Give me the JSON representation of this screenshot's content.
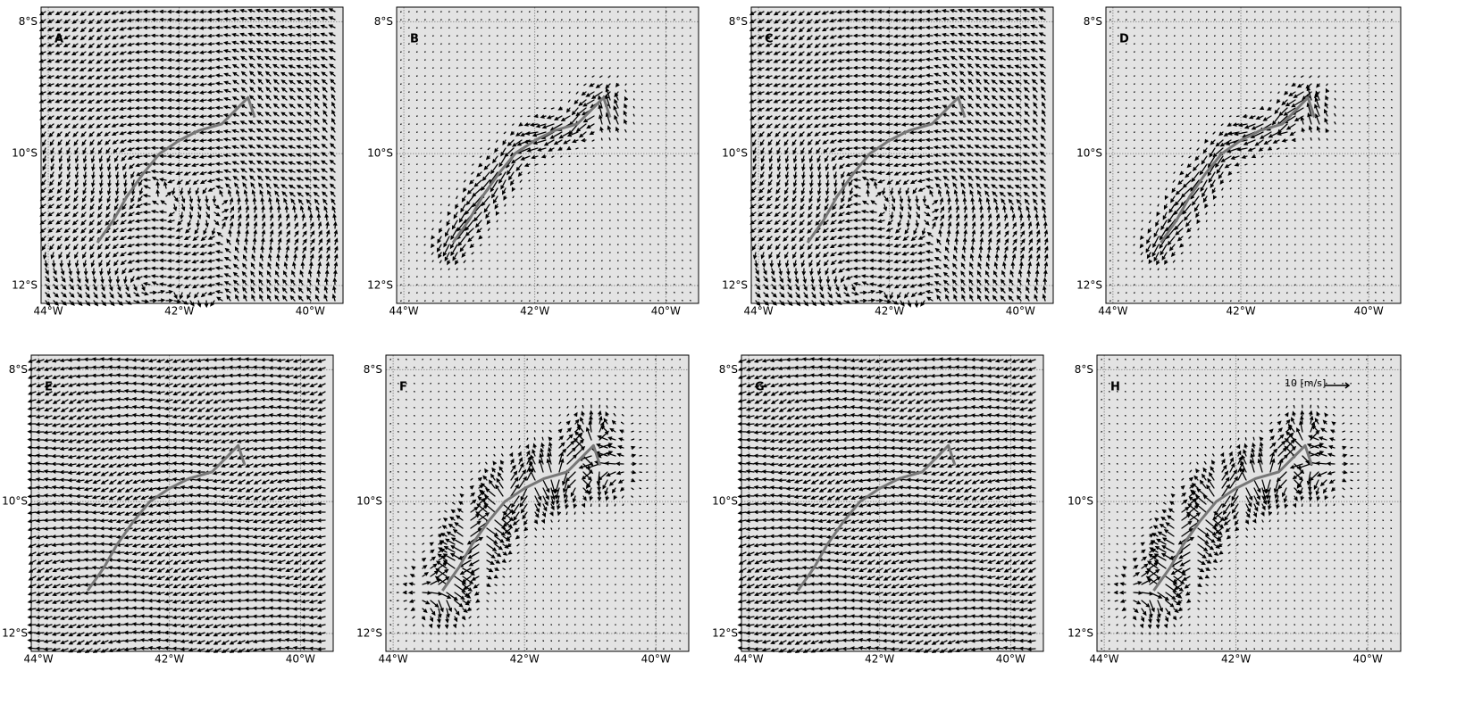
{
  "chart_data": {
    "type": "quiver",
    "panels": [
      "A",
      "B",
      "C",
      "D",
      "E",
      "F",
      "G",
      "H"
    ],
    "xlim": [
      -44.11,
      -39.5
    ],
    "ylim": [
      -12.27,
      -7.78
    ],
    "xticks": [
      {
        "value": -44,
        "label": "44°W"
      },
      {
        "value": -42,
        "label": "42°W"
      },
      {
        "value": -40,
        "label": "40°W"
      }
    ],
    "yticks": [
      {
        "value": -8,
        "label": "8°S"
      },
      {
        "value": -10,
        "label": "10°S"
      },
      {
        "value": -12,
        "label": "12°S"
      }
    ],
    "grid": true,
    "key_label": "10 [m/s]"
  }
}
